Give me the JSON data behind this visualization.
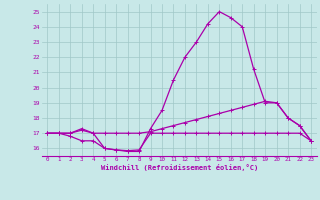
{
  "xlabel": "Windchill (Refroidissement éolien,°C)",
  "x_hours": [
    0,
    1,
    2,
    3,
    4,
    5,
    6,
    7,
    8,
    9,
    10,
    11,
    12,
    13,
    14,
    15,
    16,
    17,
    18,
    19,
    20,
    21,
    22,
    23
  ],
  "line1": [
    17.0,
    17.0,
    17.0,
    17.3,
    17.0,
    16.0,
    15.9,
    15.8,
    15.8,
    17.3,
    18.5,
    20.5,
    22.0,
    23.0,
    24.2,
    25.0,
    24.6,
    24.0,
    21.2,
    19.0,
    19.0,
    18.0,
    17.5,
    16.5
  ],
  "line2": [
    17.0,
    17.0,
    17.0,
    17.2,
    17.0,
    17.0,
    17.0,
    17.0,
    17.0,
    17.1,
    17.3,
    17.5,
    17.7,
    17.9,
    18.1,
    18.3,
    18.5,
    18.7,
    18.9,
    19.1,
    19.0,
    18.0,
    17.5,
    16.5
  ],
  "line3": [
    17.0,
    17.0,
    16.8,
    16.5,
    16.5,
    16.0,
    15.9,
    15.85,
    15.9,
    17.0,
    17.0,
    17.0,
    17.0,
    17.0,
    17.0,
    17.0,
    17.0,
    17.0,
    17.0,
    17.0,
    17.0,
    17.0,
    17.0,
    16.5
  ],
  "bg_color": "#c8e8e8",
  "grid_color": "#a0c8c8",
  "line_color": "#aa00aa",
  "xlim": [
    -0.5,
    23.5
  ],
  "ylim": [
    15.5,
    25.5
  ],
  "yticks": [
    16,
    17,
    18,
    19,
    20,
    21,
    22,
    23,
    24,
    25
  ],
  "xtick_fontsize": 4.2,
  "ytick_fontsize": 4.5,
  "xlabel_fontsize": 5.0
}
